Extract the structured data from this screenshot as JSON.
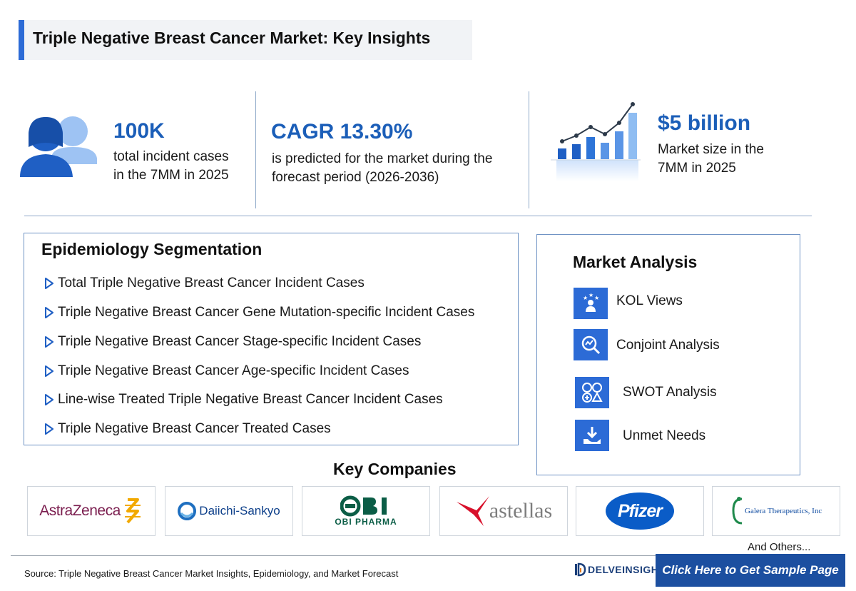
{
  "title": "Triple Negative Breast Cancer Market: Key Insights",
  "stats": [
    {
      "value": "100K",
      "lines": [
        "total incident cases",
        "in the 7MM in 2025"
      ]
    },
    {
      "value": "CAGR 13.30%",
      "lines": [
        "is predicted for the market during the",
        "forecast period (2026-2036)"
      ]
    },
    {
      "value": "$5 billion",
      "lines": [
        "Market size in the",
        "7MM in 2025"
      ]
    }
  ],
  "epidemiology": {
    "title": "Epidemiology Segmentation",
    "items": [
      "Total Triple Negative Breast Cancer Incident Cases",
      "Triple Negative Breast Cancer Gene Mutation-specific Incident Cases",
      "Triple Negative Breast Cancer Stage-specific Incident Cases",
      "Triple Negative Breast Cancer Age-specific Incident Cases",
      "Line-wise Treated Triple Negative Breast Cancer Incident Cases",
      "Triple Negative Breast Cancer Treated Cases"
    ]
  },
  "market_analysis": {
    "title": "Market Analysis",
    "items": [
      {
        "label": "KOL Views",
        "icon": "kol-views-icon"
      },
      {
        "label": "Conjoint Analysis",
        "icon": "conjoint-analysis-icon"
      },
      {
        "label": "SWOT Analysis",
        "icon": "swot-analysis-icon"
      },
      {
        "label": "Unmet Needs",
        "icon": "unmet-needs-icon"
      }
    ]
  },
  "key_companies": {
    "title": "Key Companies",
    "companies": [
      "AstraZeneca",
      "Daiichi-Sankyo",
      "OBI PHARMA",
      "astellas",
      "Pfizer",
      "Galera Therapeutics, Inc"
    ],
    "others": "And Others..."
  },
  "footer": {
    "source": "Source: Triple Negative Breast Cancer Market Insights, Epidemiology, and Market Forecast",
    "brand": "DELVEINSIGHT",
    "cta": "Click Here to Get Sample Page"
  },
  "colors": {
    "accent": "#2c6bd6",
    "heading_blue": "#1b5eb8",
    "cta_bg": "#1c4fa0"
  }
}
